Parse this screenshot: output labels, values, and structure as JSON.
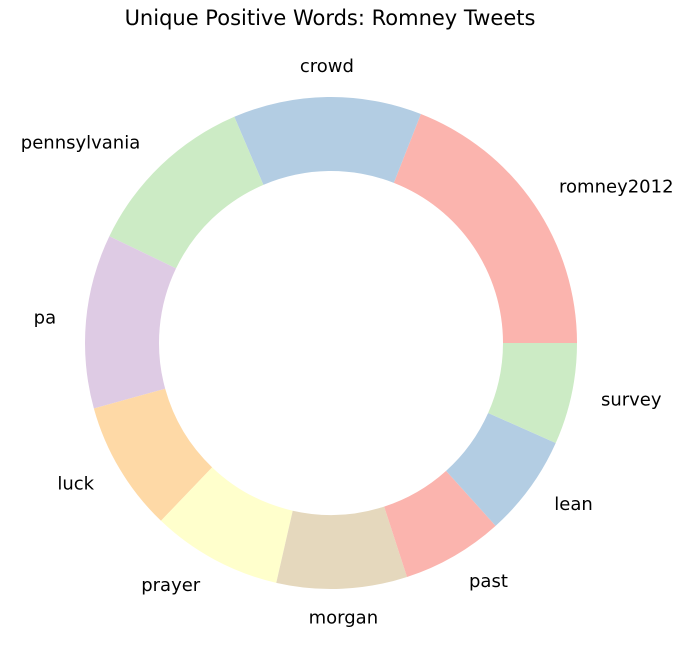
{
  "chart_data": {
    "type": "pie",
    "title": "Unique Positive Words: Romney Tweets",
    "donut": true,
    "start_angle_deg": 0,
    "direction": "counterclockwise",
    "categories": [
      "romney2012",
      "crowd",
      "pennsylvania",
      "pa",
      "luck",
      "prayer",
      "morgan",
      "past",
      "lean",
      "survey"
    ],
    "values": [
      20,
      13,
      12,
      12,
      9,
      9,
      9,
      7,
      7,
      7
    ],
    "colors": [
      "#fbb4ae",
      "#b3cde3",
      "#ccebc5",
      "#decbe4",
      "#fed9a6",
      "#ffffcc",
      "#e5d8bd",
      "#fbb4ae",
      "#b3cde3",
      "#ccebc5"
    ]
  }
}
